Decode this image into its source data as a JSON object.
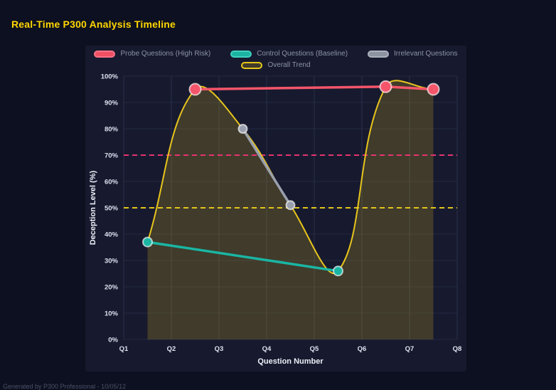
{
  "page": {
    "title": "Real-Time P300 Analysis Timeline",
    "footer": "Generated by P300 Professional - 10/05/12"
  },
  "colors": {
    "background": "#0d1020",
    "panel": "#171a2e",
    "title": "#ffd700",
    "grid_v": "#2a2f4c",
    "grid_h": "#232842",
    "tick_text": "#dce0ee",
    "axis_title": "#edf0f8",
    "trend_fill": "rgba(230,197,29,0.2)",
    "point_ring": "rgba(255,255,255,0.65)",
    "legend_text": "#8d93a8",
    "probe": "#f4556a",
    "control": "#1ab5a3",
    "irrelevant": "#9aa0ad",
    "trend": "#e8c51d",
    "threshold_high": "#e8336e",
    "threshold_mid": "#e3c51c"
  },
  "chart_data": {
    "type": "line",
    "title": "Real-Time P300 Analysis Timeline",
    "xlabel": "Question Number",
    "ylabel": "Deception Level (%)",
    "x_ticks": [
      "Q1",
      "Q2",
      "Q3",
      "Q4",
      "Q5",
      "Q6",
      "Q7",
      "Q8"
    ],
    "y_ticks": [
      "0%",
      "10%",
      "20%",
      "30%",
      "40%",
      "50%",
      "60%",
      "70%",
      "80%",
      "90%",
      "100%"
    ],
    "xlim": [
      1,
      8
    ],
    "ylim": [
      0,
      100
    ],
    "grid": true,
    "legend_position": "top",
    "series": [
      {
        "name": "Probe Questions (High Risk)",
        "color": "#f4556a",
        "points": [
          [
            2.5,
            95
          ],
          [
            6.5,
            96
          ],
          [
            7.5,
            95
          ]
        ],
        "point_radius": 8,
        "smooth": false
      },
      {
        "name": "Control Questions (Baseline)",
        "color": "#1ab5a3",
        "points": [
          [
            1.5,
            37
          ],
          [
            5.5,
            26
          ]
        ],
        "point_radius": 6.5,
        "smooth": false
      },
      {
        "name": "Irrelevant Questions",
        "color": "#9aa0ad",
        "points": [
          [
            3.5,
            80
          ],
          [
            4.5,
            51
          ]
        ],
        "point_radius": 6,
        "smooth": false
      },
      {
        "name": "Overall Trend",
        "color": "#e8c51d",
        "points": [
          [
            1.5,
            37
          ],
          [
            2.5,
            95
          ],
          [
            3.5,
            80
          ],
          [
            4.5,
            51
          ],
          [
            5.5,
            26
          ],
          [
            6.5,
            96
          ],
          [
            7.5,
            95
          ]
        ],
        "point_radius": 0,
        "smooth": true,
        "fill": true
      }
    ],
    "thresholds": [
      {
        "value": 70,
        "color": "#e8336e",
        "style": "dashed"
      },
      {
        "value": 50,
        "color": "#e3c51c",
        "style": "dashed"
      }
    ],
    "legend": {
      "rows": [
        [
          {
            "label": "Probe Questions (High Risk)",
            "swatch_fill": "#ef4f63",
            "swatch_border": "#f87286"
          },
          {
            "label": "Control Questions (Baseline)",
            "swatch_fill": "#1bb3a1",
            "swatch_border": "#3fd0bf"
          },
          {
            "label": "Irrelevant Questions",
            "swatch_fill": "#8d93a0",
            "swatch_border": "#aab0bc"
          }
        ],
        [
          {
            "label": "Overall Trend",
            "swatch_fill": "rgba(230,197,29,0.2)",
            "swatch_border": "#e6c619"
          }
        ]
      ]
    }
  }
}
